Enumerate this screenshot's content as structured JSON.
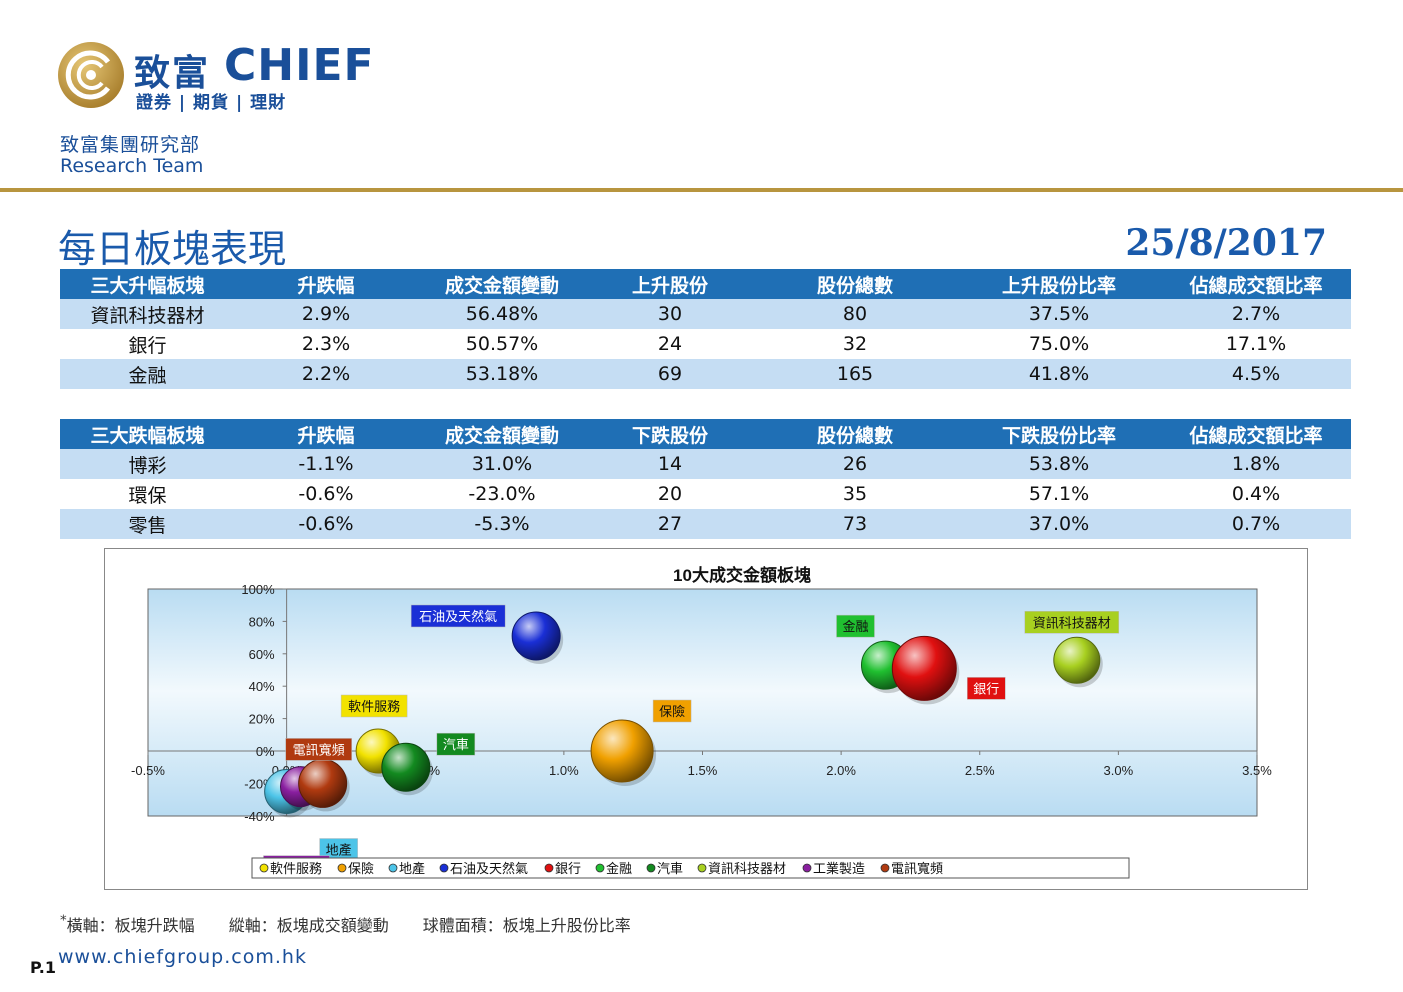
{
  "header": {
    "brand_cn": "致富",
    "brand_en": "CHIEF",
    "brand_sub": "證券 | 期貨 | 理財",
    "dept_cn": "致富集團研究部",
    "dept_en": "Research Team",
    "title": "每日板塊表現",
    "date": "25/8/2017"
  },
  "colors": {
    "brand_blue": "#1a4f99",
    "gold": "#b8953f",
    "table_header": "#1f6fb5",
    "table_stripe": "#c5ddf3"
  },
  "up_table": {
    "headers": [
      "三大升幅板塊",
      "升跌幅",
      "成交金額變動",
      "上升股份",
      "股份總數",
      "上升股份比率",
      "佔總成交額比率"
    ],
    "rows": [
      [
        "資訊科技器材",
        "2.9%",
        "56.48%",
        "30",
        "80",
        "37.5%",
        "2.7%"
      ],
      [
        "銀行",
        "2.3%",
        "50.57%",
        "24",
        "32",
        "75.0%",
        "17.1%"
      ],
      [
        "金融",
        "2.2%",
        "53.18%",
        "69",
        "165",
        "41.8%",
        "4.5%"
      ]
    ]
  },
  "down_table": {
    "headers": [
      "三大跌幅板塊",
      "升跌幅",
      "成交金額變動",
      "下跌股份",
      "股份總數",
      "下跌股份比率",
      "佔總成交額比率"
    ],
    "rows": [
      [
        "博彩",
        "-1.1%",
        "31.0%",
        "14",
        "26",
        "53.8%",
        "1.8%"
      ],
      [
        "環保",
        "-0.6%",
        "-23.0%",
        "20",
        "35",
        "57.1%",
        "0.4%"
      ],
      [
        "零售",
        "-0.6%",
        "-5.3%",
        "27",
        "73",
        "37.0%",
        "0.7%"
      ]
    ]
  },
  "chart_data": {
    "type": "scatter",
    "title": "10大成交金額板塊",
    "xlabel": "",
    "ylabel": "",
    "xlim": [
      -0.5,
      3.5
    ],
    "ylim": [
      -40,
      100
    ],
    "x_ticks": [
      "-0.5%",
      "0.0%",
      "0.5%",
      "1.0%",
      "1.5%",
      "2.0%",
      "2.5%",
      "3.0%",
      "3.5%"
    ],
    "y_ticks": [
      "-40%",
      "-20%",
      "0%",
      "20%",
      "40%",
      "60%",
      "80%",
      "100%"
    ],
    "legend_position": "bottom",
    "series": [
      {
        "name": "軟件服務",
        "x": 0.33,
        "y": 0,
        "color": "#f2e200",
        "label_color": "#f2e200"
      },
      {
        "name": "保險",
        "x": 1.21,
        "y": 0,
        "color": "#f0a000",
        "label_color": "#f0a000"
      },
      {
        "name": "地產",
        "x": 0.0,
        "y": -25,
        "color": "#4cc4e8",
        "label_color": "#4cc4e8"
      },
      {
        "name": "石油及天然氣",
        "x": 0.9,
        "y": 71,
        "color": "#1a2fd6",
        "label_color": "#1a2fd6"
      },
      {
        "name": "銀行",
        "x": 2.3,
        "y": 51,
        "color": "#e01010",
        "label_color": "#e01010"
      },
      {
        "name": "金融",
        "x": 2.16,
        "y": 53,
        "color": "#20c030",
        "label_color": "#20c030"
      },
      {
        "name": "汽車",
        "x": 0.43,
        "y": -10,
        "color": "#138a20",
        "label_color": "#138a20"
      },
      {
        "name": "資訊科技器材",
        "x": 2.85,
        "y": 56,
        "color": "#a8d020",
        "label_color": "#a8d020"
      },
      {
        "name": "工業製造",
        "x": 0.05,
        "y": -22,
        "color": "#8a1fa0",
        "label_color": "#8a1fa0"
      },
      {
        "name": "電訊寬頻",
        "x": 0.13,
        "y": -20,
        "color": "#b03a10",
        "label_color": "#b03a10"
      }
    ]
  },
  "footer": {
    "footnote_star": "*",
    "footnote_x": "橫軸：板塊升跌幅",
    "footnote_y": "縱軸：板塊成交額變動",
    "footnote_size": "球體面積：板塊上升股份比率",
    "page": "P.1",
    "website": "www.chiefgroup.com.hk"
  }
}
